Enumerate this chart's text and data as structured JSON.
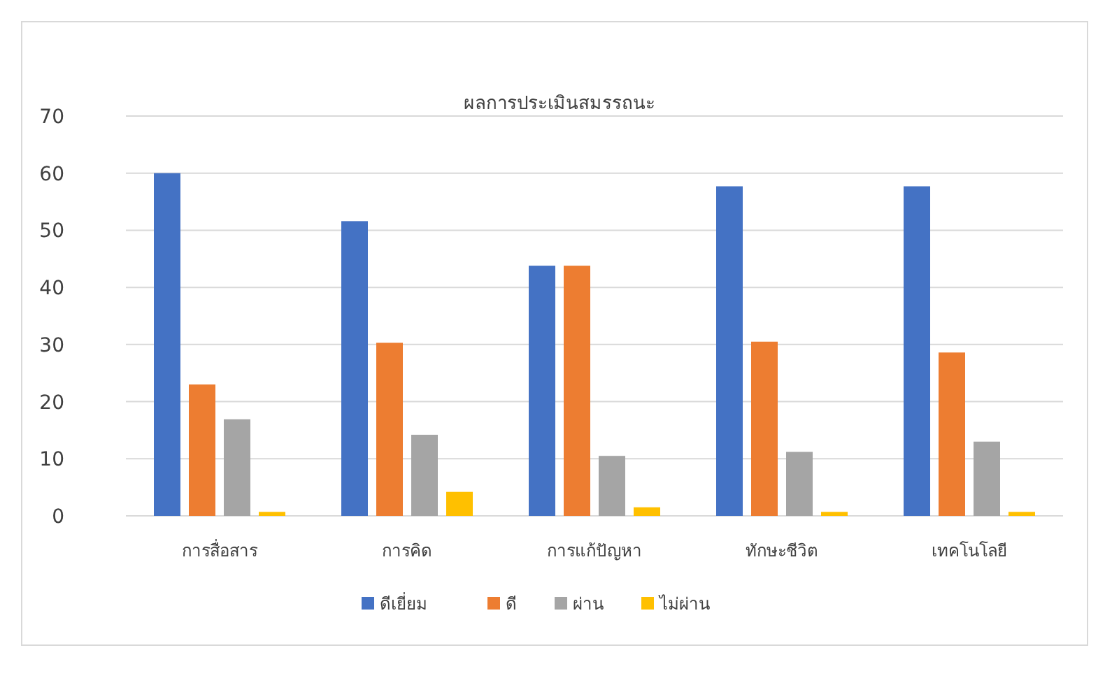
{
  "chart_data": {
    "type": "bar",
    "title": "ผลการประเมินสมรรถนะ",
    "categories": [
      "การสื่อสาร",
      "การคิด",
      "การแก้ปัญหา",
      "ทักษะชีวิต",
      "เทคโนโลยี"
    ],
    "series": [
      {
        "name": "ดีเยี่ยม",
        "color": "#4472c4",
        "values": [
          60,
          51.6,
          43.8,
          57.7,
          57.7
        ]
      },
      {
        "name": "ดี",
        "color": "#ed7d31",
        "values": [
          23,
          30.3,
          43.8,
          30.5,
          28.6
        ]
      },
      {
        "name": "ผ่าน",
        "color": "#a5a5a5",
        "values": [
          16.9,
          14.2,
          10.5,
          11.2,
          13
        ]
      },
      {
        "name": "ไม่ผ่าน",
        "color": "#ffc000",
        "values": [
          0.7,
          4.2,
          1.5,
          0.7,
          0.7
        ]
      }
    ],
    "ylim": [
      0,
      70
    ],
    "yticks": [
      0,
      10,
      20,
      30,
      40,
      50,
      60,
      70
    ],
    "grid": "y",
    "legend": "bottom"
  }
}
